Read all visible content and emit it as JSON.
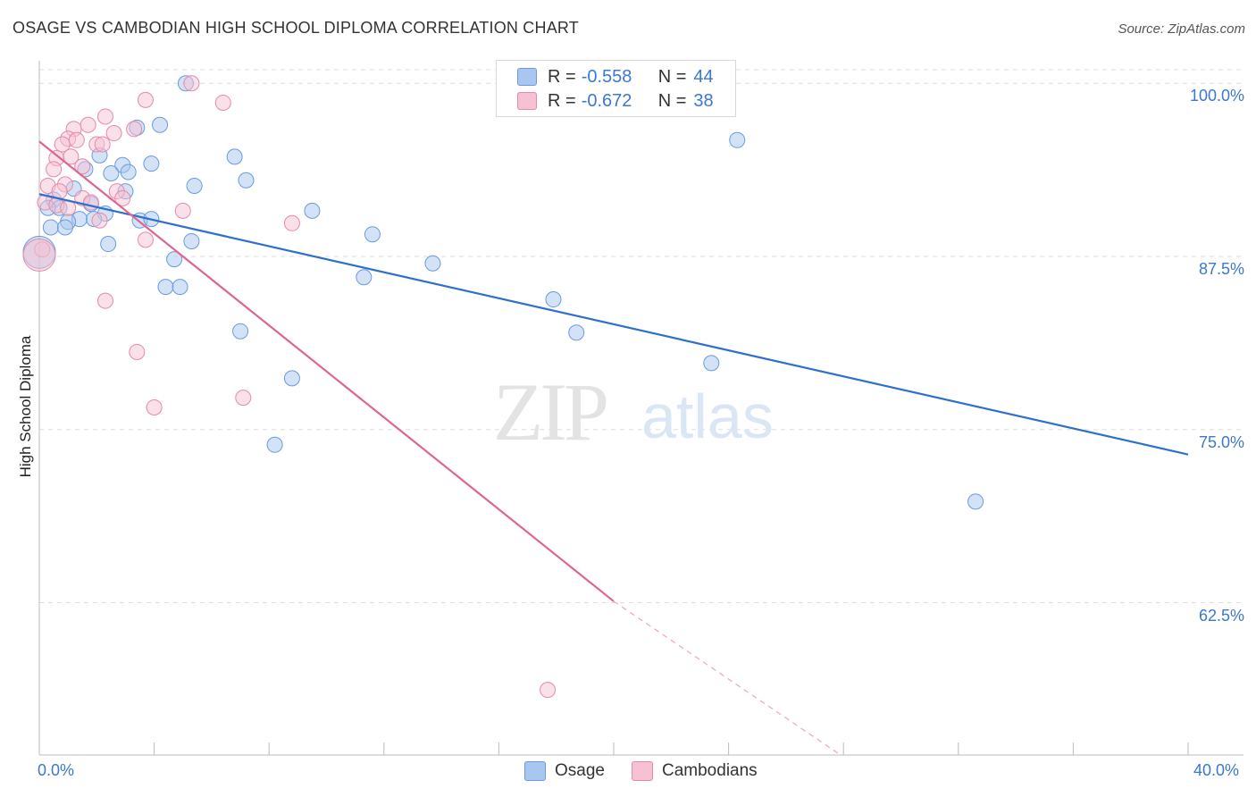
{
  "title": "OSAGE VS CAMBODIAN HIGH SCHOOL DIPLOMA CORRELATION CHART",
  "source": "Source: ZipAtlas.com",
  "watermark": {
    "zip": "ZIP",
    "atlas": "atlas"
  },
  "legend": {
    "rows": [
      {
        "r_label": "R =",
        "r_value": "-0.558",
        "n_label": "N =",
        "n_value": "44",
        "color": "#a9c6f0",
        "border": "#6a9bdc"
      },
      {
        "r_label": "R =",
        "r_value": "-0.672",
        "n_label": "N =",
        "n_value": "38",
        "color": "#f6c1d2",
        "border": "#e58aa8"
      }
    ]
  },
  "bottom_legend": [
    {
      "label": "Osage",
      "color": "#a9c6f0",
      "border": "#6a9bdc"
    },
    {
      "label": "Cambodians",
      "color": "#f6c1d2",
      "border": "#e58aa8"
    }
  ],
  "chart_data": {
    "type": "scatter",
    "title": "OSAGE VS CAMBODIAN HIGH SCHOOL DIPLOMA CORRELATION CHART",
    "xlabel": "",
    "ylabel": "High School Diploma",
    "xlim": [
      0.0,
      40.0
    ],
    "ylim": [
      51.5,
      101.5
    ],
    "x_tick_labels": [
      "0.0%",
      "40.0%"
    ],
    "y_ticks": [
      62.5,
      75.0,
      87.5,
      100.0
    ],
    "y_tick_labels": [
      "62.5%",
      "75.0%",
      "87.5%",
      "100.0%"
    ],
    "grid": true,
    "series": [
      {
        "name": "Osage",
        "color": "#6a9bdc",
        "fill": "#a9c6f0",
        "trend": {
          "x0": 0.0,
          "y0": 92.0,
          "x1": 40.0,
          "y1": 73.2,
          "color": "#2f6fcc"
        },
        "points": [
          [
            5.1,
            100.0
          ],
          [
            4.2,
            97.0
          ],
          [
            3.4,
            96.8
          ],
          [
            2.1,
            94.8
          ],
          [
            3.9,
            94.2
          ],
          [
            2.9,
            94.1
          ],
          [
            1.6,
            93.8
          ],
          [
            3.1,
            93.6
          ],
          [
            2.5,
            93.5
          ],
          [
            1.2,
            92.4
          ],
          [
            3.0,
            92.2
          ],
          [
            0.5,
            91.6
          ],
          [
            0.7,
            91.0
          ],
          [
            1.8,
            91.3
          ],
          [
            0.3,
            91.0
          ],
          [
            2.3,
            90.6
          ],
          [
            1.4,
            90.2
          ],
          [
            1.0,
            90.0
          ],
          [
            1.9,
            90.2
          ],
          [
            3.5,
            90.1
          ],
          [
            3.9,
            90.2
          ],
          [
            0.4,
            89.6
          ],
          [
            0.9,
            89.6
          ],
          [
            2.4,
            88.4
          ],
          [
            5.3,
            88.6
          ],
          [
            4.7,
            87.3
          ],
          [
            4.4,
            85.3
          ],
          [
            4.9,
            85.3
          ],
          [
            6.8,
            94.7
          ],
          [
            7.2,
            93.0
          ],
          [
            5.4,
            92.6
          ],
          [
            9.5,
            90.8
          ],
          [
            11.6,
            89.1
          ],
          [
            13.7,
            87.0
          ],
          [
            11.3,
            86.0
          ],
          [
            17.9,
            84.4
          ],
          [
            7.0,
            82.1
          ],
          [
            18.7,
            82.0
          ],
          [
            8.8,
            78.7
          ],
          [
            23.4,
            79.8
          ],
          [
            8.2,
            73.9
          ],
          [
            24.3,
            95.9
          ],
          [
            32.6,
            69.8
          ],
          [
            0.0,
            87.8
          ]
        ]
      },
      {
        "name": "Cambodians",
        "color": "#e58aa8",
        "fill": "#f6c1d2",
        "trend": {
          "x0": 0.0,
          "y0": 95.8,
          "x1": 20.0,
          "y1": 62.6,
          "color": "#e0658f"
        },
        "trend_ext": {
          "x0": 20.0,
          "y0": 62.6,
          "x1": 27.9,
          "y1": 51.5
        },
        "points": [
          [
            5.3,
            100.0
          ],
          [
            3.7,
            98.8
          ],
          [
            6.4,
            98.6
          ],
          [
            2.3,
            97.6
          ],
          [
            1.7,
            97.0
          ],
          [
            3.3,
            96.7
          ],
          [
            1.2,
            96.7
          ],
          [
            2.6,
            96.4
          ],
          [
            1.0,
            96.0
          ],
          [
            1.3,
            95.9
          ],
          [
            0.8,
            95.6
          ],
          [
            2.0,
            95.6
          ],
          [
            2.2,
            95.6
          ],
          [
            0.6,
            94.6
          ],
          [
            1.1,
            94.7
          ],
          [
            1.5,
            94.0
          ],
          [
            0.5,
            93.8
          ],
          [
            0.9,
            92.7
          ],
          [
            0.3,
            92.6
          ],
          [
            0.7,
            92.2
          ],
          [
            1.5,
            91.7
          ],
          [
            2.7,
            92.2
          ],
          [
            2.9,
            91.7
          ],
          [
            1.8,
            91.4
          ],
          [
            0.2,
            91.4
          ],
          [
            0.6,
            91.2
          ],
          [
            1.0,
            91.0
          ],
          [
            5.0,
            90.8
          ],
          [
            2.1,
            90.1
          ],
          [
            8.8,
            89.9
          ],
          [
            3.7,
            88.7
          ],
          [
            0.1,
            88.0
          ],
          [
            2.3,
            84.3
          ],
          [
            3.4,
            80.6
          ],
          [
            4.0,
            76.6
          ],
          [
            7.1,
            77.3
          ],
          [
            17.7,
            56.2
          ],
          [
            0.0,
            87.6
          ]
        ]
      }
    ]
  }
}
